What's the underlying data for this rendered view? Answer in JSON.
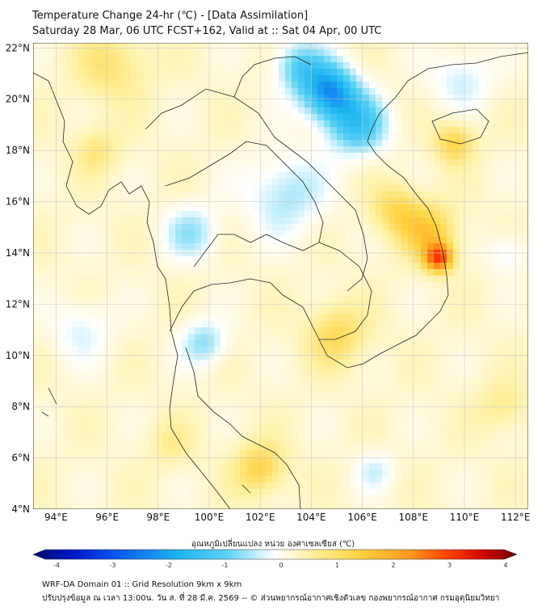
{
  "title": {
    "line1": "Temperature Change 24-hr (℃) - [Data Assimilation]",
    "line2": "Saturday 28 Mar, 06 UTC FCST+162, Valid at :: Sat 04 Apr, 00 UTC"
  },
  "map": {
    "lat_labels": [
      "22°N",
      "20°N",
      "18°N",
      "16°N",
      "14°N",
      "12°N",
      "10°N",
      "8°N",
      "6°N",
      "4°N"
    ],
    "lon_labels": [
      "94°E",
      "96°E",
      "98°E",
      "100°E",
      "102°E",
      "104°E",
      "106°E",
      "108°E",
      "110°E",
      "112°E"
    ],
    "lat_range": [
      4,
      22.2
    ],
    "lon_range": [
      93.1,
      112.5
    ],
    "anomalies": [
      {
        "lon": 104.7,
        "lat": 20.3,
        "value": -2.3,
        "spread": 1.1
      },
      {
        "lon": 105.8,
        "lat": 19.0,
        "value": -1.6,
        "spread": 1.2
      },
      {
        "lon": 103.5,
        "lat": 21.3,
        "value": -1.2,
        "spread": 1.0
      },
      {
        "lon": 109.0,
        "lat": 13.8,
        "value": 2.7,
        "spread": 0.55
      },
      {
        "lon": 108.6,
        "lat": 14.8,
        "value": 1.3,
        "spread": 1.1
      },
      {
        "lon": 107.3,
        "lat": 15.7,
        "value": 1.0,
        "spread": 1.0
      },
      {
        "lon": 109.6,
        "lat": 18.3,
        "value": 1.2,
        "spread": 0.8
      },
      {
        "lon": 105.0,
        "lat": 10.8,
        "value": 1.0,
        "spread": 1.2
      },
      {
        "lon": 102.0,
        "lat": 5.6,
        "value": 1.2,
        "spread": 1.0
      },
      {
        "lon": 96.2,
        "lat": 21.3,
        "value": 0.8,
        "spread": 1.4
      },
      {
        "lon": 95.6,
        "lat": 18.0,
        "value": 0.7,
        "spread": 0.9
      },
      {
        "lon": 103.0,
        "lat": 16.3,
        "value": -0.9,
        "spread": 1.6
      },
      {
        "lon": 99.3,
        "lat": 14.8,
        "value": -0.9,
        "spread": 1.1
      },
      {
        "lon": 99.8,
        "lat": 10.5,
        "value": -1.0,
        "spread": 0.9
      },
      {
        "lon": 95.0,
        "lat": 11.0,
        "value": -0.6,
        "spread": 1.2
      },
      {
        "lon": 109.9,
        "lat": 20.8,
        "value": -0.7,
        "spread": 1.2
      },
      {
        "lon": 111.7,
        "lat": 14.0,
        "value": -0.6,
        "spread": 0.8
      },
      {
        "lon": 106.5,
        "lat": 5.5,
        "value": -0.6,
        "spread": 0.8
      },
      {
        "lon": 111.5,
        "lat": 8.0,
        "value": 0.6,
        "spread": 1.0
      },
      {
        "lon": 98.5,
        "lat": 6.5,
        "value": 0.5,
        "spread": 0.9
      }
    ]
  },
  "colorbar": {
    "title": "อุณหภูมิเปลี่ยนแปลง หน่วย องศาเซลเซียส (℃)",
    "ticks": [
      "-4",
      "-3",
      "-2",
      "-1",
      "0",
      "1",
      "2",
      "3",
      "4"
    ],
    "min": -4,
    "max": 4,
    "colors": [
      "#000a6e",
      "#0019c8",
      "#0a5af0",
      "#1eb4f0",
      "#5ad2f5",
      "#ffffff",
      "#fff0a0",
      "#ffd23c",
      "#ff9b1e",
      "#ff3c00",
      "#c80000",
      "#6e0000"
    ]
  },
  "footer": {
    "line1": "WRF-DA Domain 01 :: Grid Resolution 9km x 9km",
    "line2": "ปรับปรุงข้อมูล ณ เวลา 13:00น. วัน ส. ที่ 28 มี.ค. 2569 -- © ส่วนพยากรณ์อากาศเชิงตัวเลข กองพยากรณ์อากาศ กรมอุตุนิยมวิทยา"
  }
}
